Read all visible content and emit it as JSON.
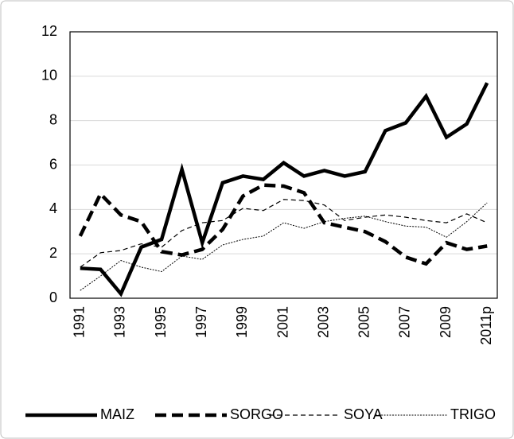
{
  "chart_data": {
    "type": "line",
    "categories": [
      "1991",
      null,
      "1993",
      null,
      "1995",
      null,
      "1997",
      null,
      "1999",
      null,
      "2001",
      null,
      "2003",
      null,
      "2005",
      null,
      "2007",
      null,
      "2009",
      null,
      "2011p"
    ],
    "series": [
      {
        "name": "MAIZ",
        "color": "#000000",
        "dash": "solid",
        "width": 4.5,
        "values": [
          1.35,
          1.3,
          0.2,
          2.3,
          2.65,
          5.8,
          2.5,
          5.2,
          5.5,
          5.35,
          6.1,
          5.5,
          5.75,
          5.5,
          5.7,
          7.55,
          7.9,
          9.1,
          7.25,
          7.85,
          9.7
        ]
      },
      {
        "name": "SORGO",
        "color": "#000000",
        "dash": "dashed",
        "width": 4.5,
        "values": [
          2.8,
          4.7,
          3.75,
          3.45,
          2.1,
          1.95,
          2.2,
          3.1,
          4.6,
          5.1,
          5.05,
          4.75,
          3.4,
          3.2,
          3.0,
          2.55,
          1.85,
          1.55,
          2.5,
          2.2,
          2.35
        ]
      },
      {
        "name": "SOYA",
        "color": "#000000",
        "dash": "thin-dashed",
        "width": 1.2,
        "values": [
          1.4,
          2.05,
          2.15,
          2.45,
          2.3,
          3.05,
          3.4,
          3.5,
          4.05,
          3.95,
          4.45,
          4.4,
          4.2,
          3.5,
          3.65,
          3.75,
          3.65,
          3.5,
          3.4,
          3.8,
          3.4
        ]
      },
      {
        "name": "TRIGO",
        "color": "#000000",
        "dash": "dotted",
        "width": 1,
        "values": [
          0.35,
          1.0,
          1.7,
          1.4,
          1.2,
          1.9,
          1.75,
          2.4,
          2.65,
          2.8,
          3.4,
          3.15,
          3.45,
          3.6,
          3.7,
          3.45,
          3.25,
          3.2,
          2.75,
          3.45,
          4.3
        ]
      }
    ],
    "ylim": [
      0,
      12
    ],
    "yticks": [
      0,
      2,
      4,
      6,
      8,
      10,
      12
    ],
    "grid": true,
    "legend": "bottom"
  }
}
